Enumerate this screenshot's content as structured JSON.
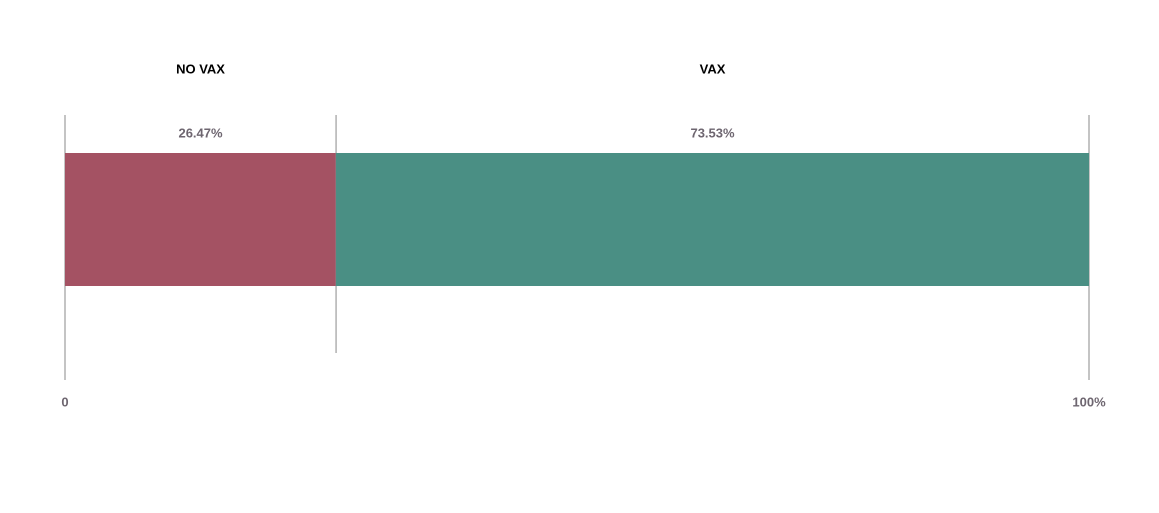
{
  "chart_data": {
    "type": "stacked-bar",
    "orientation": "horizontal",
    "series": [
      {
        "name": "NO VAX",
        "color": "#a45263",
        "values": [
          26.47
        ],
        "value_labels": [
          "26.47%"
        ]
      },
      {
        "name": "VAX",
        "color": "#4a8f84",
        "values": [
          73.53
        ],
        "value_labels": [
          "73.53%"
        ]
      }
    ],
    "xlim": [
      0,
      100
    ],
    "xticks": [
      0,
      {
        "value": 100,
        "label": "100%"
      }
    ]
  }
}
